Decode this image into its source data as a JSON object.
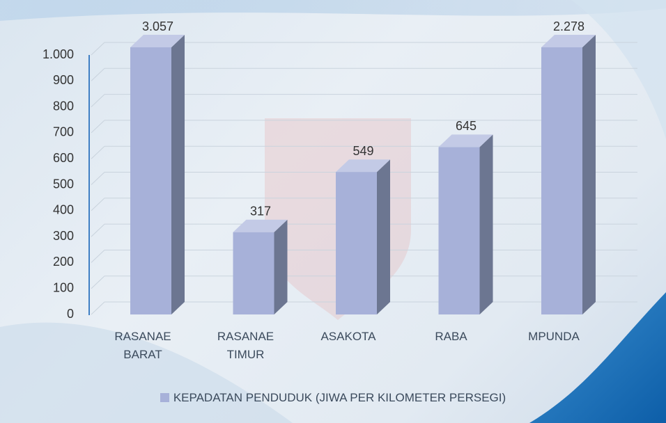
{
  "chart_data": {
    "type": "bar",
    "categories": [
      "RASANAE BARAT",
      "RASANAE TIMUR",
      "ASAKOTA",
      "RABA",
      "MPUNDA"
    ],
    "series": [
      {
        "name": "KEPADATAN PENDUDUK (JIWA PER KILOMETER PERSEGI)",
        "color": "#a7b1d9",
        "values": [
          3057,
          317,
          549,
          645,
          2278
        ],
        "value_labels": [
          "3.057",
          "317",
          "549",
          "645",
          "2.278"
        ]
      }
    ],
    "ylim": [
      0,
      1000
    ],
    "yticks": [
      0,
      100,
      200,
      300,
      400,
      500,
      600,
      700,
      800,
      900,
      {
        "value": 1000,
        "label": "1.000"
      }
    ],
    "grid": true,
    "legend": "bottom"
  }
}
